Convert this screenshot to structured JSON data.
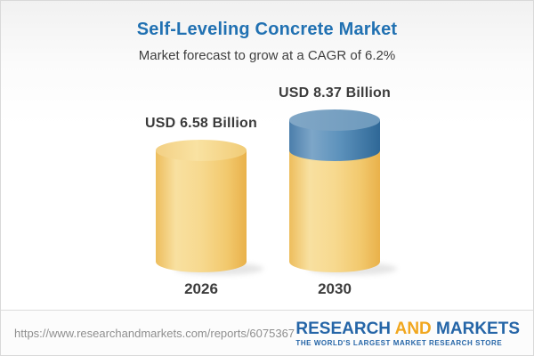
{
  "chart_data": {
    "type": "bar",
    "variant": "3d-cylinder-comparison",
    "title": "Self-Leveling Concrete Market",
    "subtitle": "Market forecast to grow at a CAGR of 6.2%",
    "categories": [
      "2026",
      "2030"
    ],
    "values": [
      6.58,
      8.37
    ],
    "value_labels": [
      "USD 6.58 Billion",
      "USD 8.37 Billion"
    ],
    "unit": "USD Billion",
    "cagr_percent": 6.2,
    "ylim": [
      0,
      8.37
    ],
    "axes": "hidden",
    "grid": false,
    "legend": "none",
    "increment_highlight": "growth above first bar value shown as blue top segment on second bar",
    "colors": {
      "bar_body": [
        "#EDBD5C",
        "#F8E0A0",
        "#F7D98F",
        "#F2C96E",
        "#E9B14A"
      ],
      "bar_top": [
        "#F3D084",
        "#F9E2A2",
        "#F1CC77"
      ],
      "increment_body": [
        "#4B7EAB",
        "#7DA6C8",
        "#5D92BC",
        "#2F6897"
      ],
      "increment_top": [
        "#81A7C6",
        "#6E9ABD"
      ]
    }
  },
  "theme": {
    "title_blue": "#2171B2",
    "subtitle_gray": "#3F3F3F",
    "label_gray": "#3B3B3B",
    "background_top": "#F1F1F1",
    "background_bottom": "#FFFFFF"
  },
  "footer": {
    "url": "https://www.researchandmarkets.com/reports/6075367",
    "logo": {
      "part1": "RESEARCH",
      "part2": "AND",
      "part3": "MARKETS",
      "tagline": "THE WORLD'S LARGEST MARKET RESEARCH STORE",
      "blue": "#2565A7",
      "orange": "#F1A71F"
    }
  }
}
